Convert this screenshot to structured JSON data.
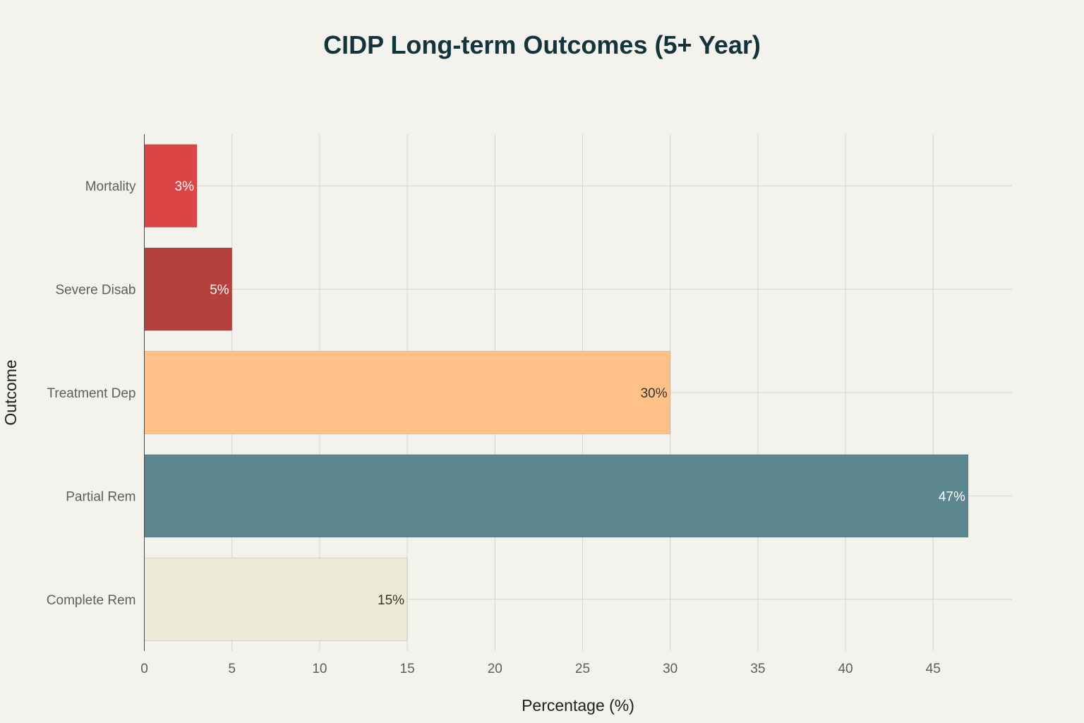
{
  "chart_data": {
    "type": "bar",
    "orientation": "horizontal",
    "title": "CIDP Long-term Outcomes (5+ Year)",
    "xlabel": "Percentage (%)",
    "ylabel": "Outcome",
    "categories": [
      "Complete Rem",
      "Partial Rem",
      "Treatment Dep",
      "Severe Disab",
      "Mortality"
    ],
    "values": [
      15,
      47,
      30,
      5,
      3
    ],
    "data_labels": [
      "15%",
      "47%",
      "30%",
      "5%",
      "3%"
    ],
    "bar_colors": [
      "#ecebd5",
      "#5d878f",
      "#ffc185",
      "#b4413c",
      "#db4545"
    ],
    "label_colors": [
      "#333333",
      "#ffffff",
      "#333333",
      "#ffffff",
      "#ffffff"
    ],
    "xlim": [
      0,
      49.5
    ],
    "xticks": [
      0,
      5,
      10,
      15,
      20,
      25,
      30,
      35,
      40,
      45
    ],
    "grid": true,
    "legend": "none"
  }
}
